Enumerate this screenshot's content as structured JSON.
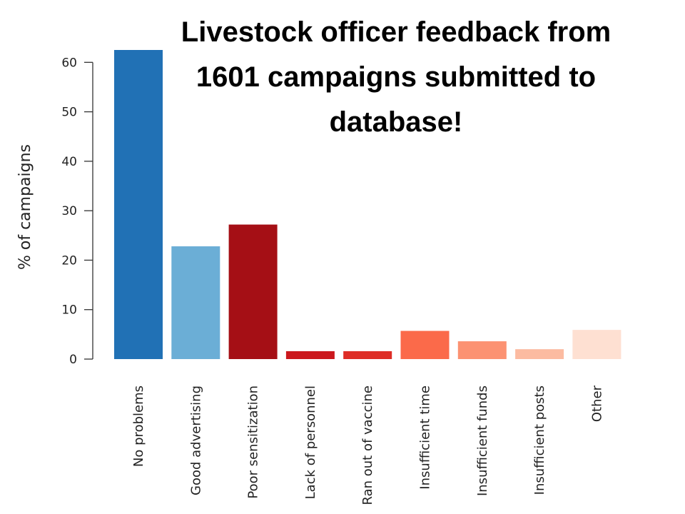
{
  "chart_data": {
    "type": "bar",
    "title": "Livestock officer feedback from 1601 campaigns submitted to database!",
    "xlabel": "",
    "ylabel": "% of campaigns",
    "ylim": [
      0,
      62.5
    ],
    "yticks": [
      0,
      10,
      20,
      30,
      40,
      50,
      60
    ],
    "grid": false,
    "categories": [
      "No problems",
      "Good advertising",
      "Poor sensitization",
      "Lack of personnel",
      "Ran out of vaccine",
      "Insufficient time",
      "Insufficient funds",
      "Insufficient posts",
      "Other"
    ],
    "values": [
      62.5,
      22.8,
      27.2,
      1.6,
      1.6,
      5.7,
      3.6,
      2.0,
      5.9
    ],
    "colors": [
      "#2171b5",
      "#6baed6",
      "#a50f15",
      "#cb181d",
      "#de2d26",
      "#fb6a4a",
      "#fc9272",
      "#fcbba1",
      "#fee0d2"
    ]
  }
}
